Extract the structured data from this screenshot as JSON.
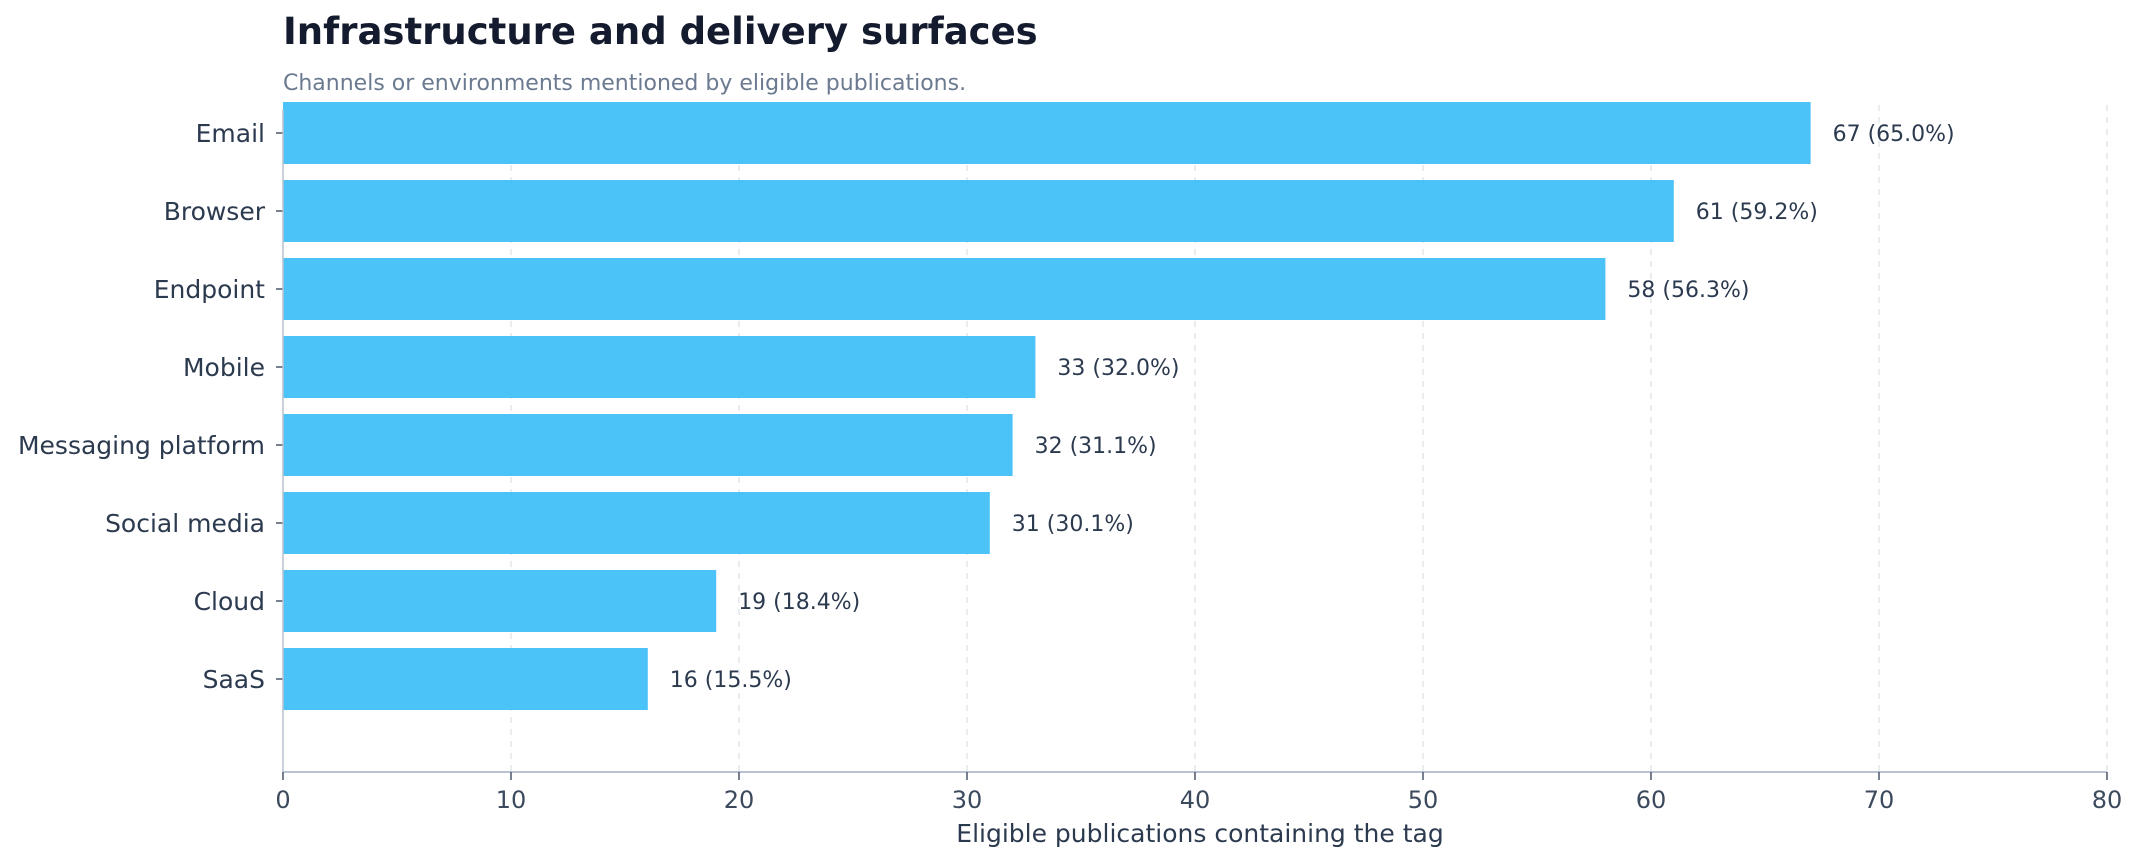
{
  "chart_data": {
    "type": "bar",
    "orientation": "horizontal",
    "title": "Infrastructure and delivery surfaces",
    "subtitle": "Channels or environments mentioned by eligible publications.",
    "xlabel": "Eligible publications containing the tag",
    "ylabel": "",
    "categories": [
      "Email",
      "Browser",
      "Endpoint",
      "Mobile",
      "Messaging platform",
      "Social media",
      "Cloud",
      "SaaS"
    ],
    "values": [
      67,
      61,
      58,
      33,
      32,
      31,
      19,
      16
    ],
    "data_labels": [
      "67  (65.0%)",
      "61  (59.2%)",
      "58  (56.3%)",
      "33  (32.0%)",
      "32  (31.1%)",
      "31  (30.1%)",
      "19  (18.4%)",
      "16  (15.5%)"
    ],
    "xlim": [
      0,
      80
    ],
    "xticks": [
      0,
      10,
      20,
      30,
      40,
      50,
      60,
      70,
      80
    ],
    "grid": "vertical dashed",
    "colors": {
      "bar": "#4cc3f8",
      "grid": "#e3e7ec",
      "axis": "#b9c2cf"
    }
  }
}
